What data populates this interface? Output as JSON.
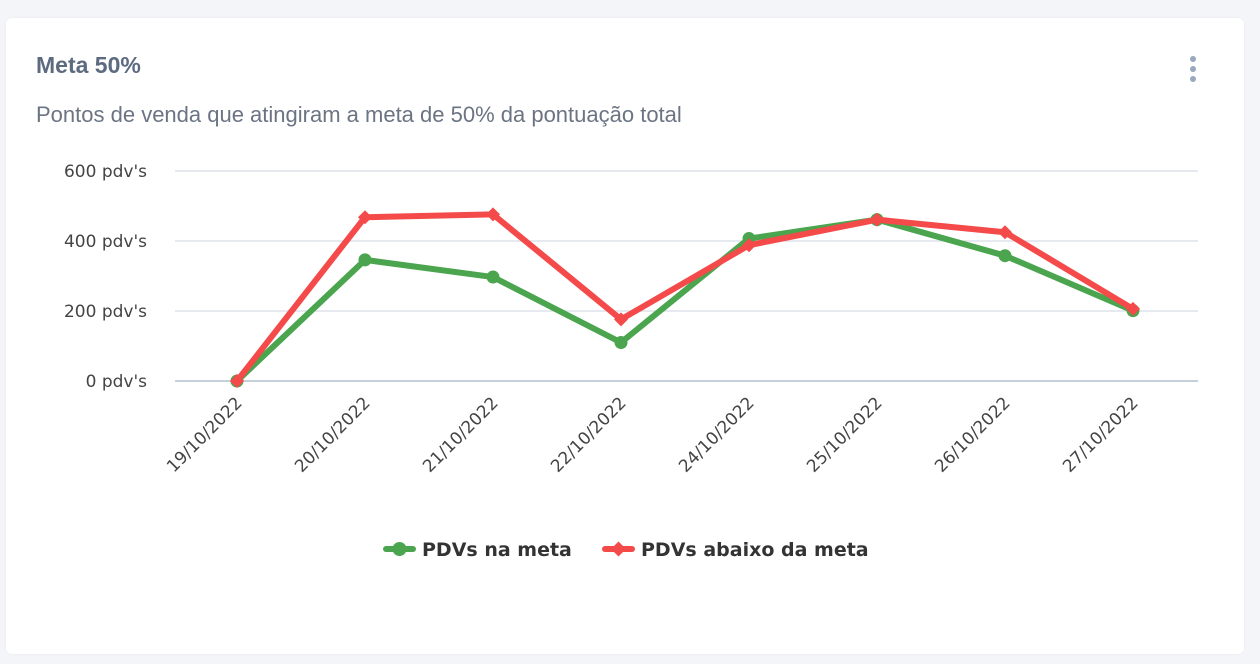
{
  "card": {
    "title": "Meta 50%",
    "subtitle": "Pontos de venda que atingiram a meta de 50% da pontuação total",
    "menu_icon": "kebab-menu-icon"
  },
  "chart_data": {
    "type": "line",
    "categories": [
      "19/10/2022",
      "20/10/2022",
      "21/10/2022",
      "22/10/2022",
      "24/10/2022",
      "25/10/2022",
      "26/10/2022",
      "27/10/2022"
    ],
    "series": [
      {
        "name": "PDVs na meta",
        "color": "#4aa54e",
        "marker": "circle",
        "values": [
          0,
          346,
          297,
          110,
          407,
          461,
          358,
          201
        ]
      },
      {
        "name": "PDVs abaixo da meta",
        "color": "#f44a4a",
        "marker": "diamond",
        "values": [
          0,
          468,
          476,
          176,
          388,
          461,
          425,
          206
        ]
      }
    ],
    "ylim": [
      0,
      600
    ],
    "y_ticks": [
      0,
      200,
      400,
      600
    ],
    "y_tick_suffix": " pdv's",
    "y_tick_labels": [
      "0 pdv's",
      "200 pdv's",
      "400 pdv's",
      "600 pdv's"
    ],
    "grid": true,
    "legend_position": "bottom-center",
    "x_label_rotation": -45
  }
}
